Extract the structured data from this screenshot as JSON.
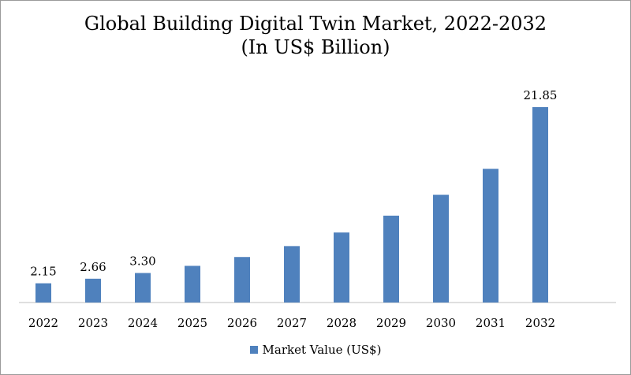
{
  "chart_data": {
    "type": "bar",
    "title": "Global Building Digital Twin Market, 2022-2032",
    "subtitle": "(In US$ Billion)",
    "categories": [
      "2022",
      "2023",
      "2024",
      "2025",
      "2026",
      "2027",
      "2028",
      "2029",
      "2030",
      "2031",
      "2032"
    ],
    "series": [
      {
        "name": "Market Value (US$)",
        "values": [
          2.15,
          2.66,
          3.3,
          4.1,
          5.09,
          6.31,
          7.83,
          9.71,
          12.05,
          14.95,
          21.85
        ],
        "data_labels": [
          "2.15",
          "2.66",
          "3.30",
          null,
          null,
          null,
          null,
          null,
          null,
          null,
          "21.85"
        ]
      }
    ],
    "ylim": [
      0,
      24.4
    ],
    "grid": false,
    "legend_position": "bottom",
    "colors": {
      "bar": "#4f81bd",
      "axis": "#bfbfbf"
    }
  }
}
